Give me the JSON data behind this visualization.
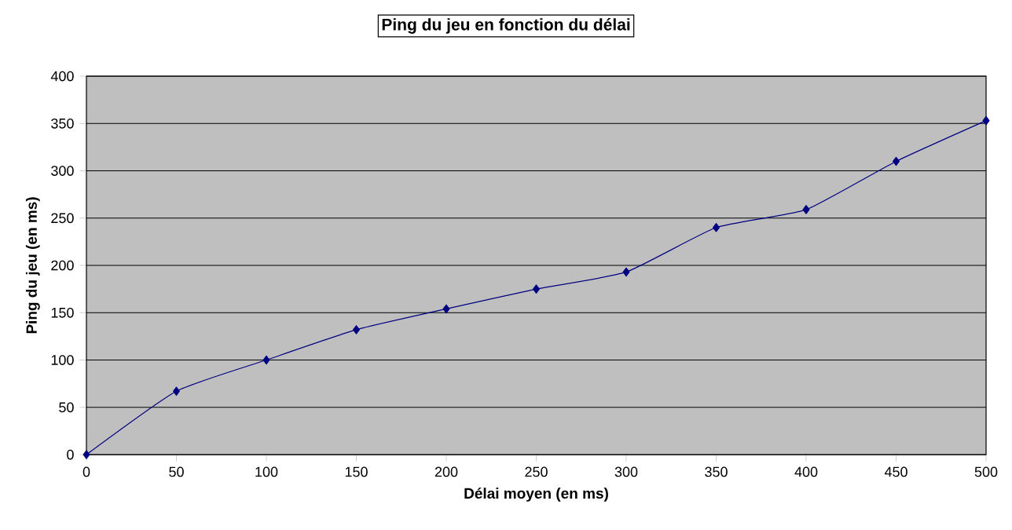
{
  "chart_data": {
    "type": "line",
    "title": "Ping du jeu en fonction du délai",
    "xlabel": "Délai moyen (en ms)",
    "ylabel": "Ping du jeu (en ms)",
    "x": [
      0,
      50,
      100,
      150,
      200,
      250,
      300,
      350,
      400,
      450,
      500
    ],
    "series": [
      {
        "color": "#000080",
        "values": [
          0,
          67,
          100,
          132,
          154,
          175,
          193,
          240,
          259,
          310,
          353
        ]
      }
    ],
    "xlim": [
      0,
      500
    ],
    "ylim": [
      0,
      400
    ],
    "xticks": [
      0,
      50,
      100,
      150,
      200,
      250,
      300,
      350,
      400,
      450,
      500
    ],
    "yticks": [
      0,
      50,
      100,
      150,
      200,
      250,
      300,
      350,
      400
    ],
    "grid": "y",
    "marker": "diamond"
  }
}
